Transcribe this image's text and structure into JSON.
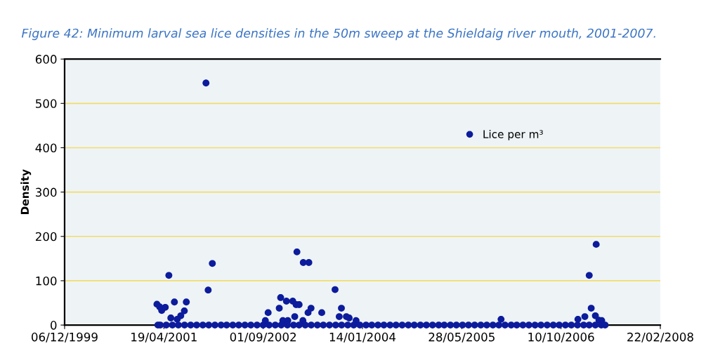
{
  "chart_data": {
    "type": "scatter",
    "title": "Figure 42: Minimum larval sea lice densities in the 50m sweep at the Shieldaig river mouth, 2001-2007.",
    "ylabel": "Density",
    "xlim": [
      "1999-12-06",
      "2008-02-22"
    ],
    "xticks": [
      {
        "value": "1999-12-06",
        "label": "06/12/1999"
      },
      {
        "value": "2001-04-19",
        "label": "19/04/2001"
      },
      {
        "value": "2002-09-01",
        "label": "01/09/2002"
      },
      {
        "value": "2004-01-14",
        "label": "14/01/2004"
      },
      {
        "value": "2005-05-28",
        "label": "28/05/2005"
      },
      {
        "value": "2006-10-10",
        "label": "10/10/2006"
      },
      {
        "value": "2008-02-22",
        "label": "22/02/2008"
      }
    ],
    "ylim": [
      0,
      600
    ],
    "yticks": [
      0,
      100,
      200,
      300,
      400,
      500,
      600
    ],
    "grid": "y",
    "legend": "top right",
    "marker": "circle",
    "series": [
      {
        "name": "Lice per m³",
        "color": "#0c1c9c",
        "x": [
          "2001-11-17",
          "2001-12-19",
          "2001-05-14",
          "2001-11-28",
          "2001-03-15",
          "2001-03-29",
          "2001-04-08",
          "2001-04-26",
          "2001-06-11",
          "2001-08-10",
          "2001-07-31",
          "2001-07-13",
          "2001-06-25",
          "2001-05-24",
          "2003-02-18",
          "2003-03-22",
          "2003-04-19",
          "2003-08-29",
          "2002-11-28",
          "2002-12-27",
          "2003-01-28",
          "2003-02-14",
          "2003-03-01",
          "2002-11-21",
          "2003-04-30",
          "2003-04-15",
          "2002-09-26",
          "2003-06-23",
          "2003-09-30",
          "2003-02-07",
          "2003-09-19",
          "2003-10-25",
          "2003-11-08",
          "2002-12-09",
          "2003-01-03",
          "2003-03-20",
          "2002-09-12",
          "2003-12-13",
          "2007-04-05",
          "2007-03-01",
          "2007-03-11",
          "2007-02-07",
          "2007-04-01",
          "2007-01-03",
          "2007-04-19",
          "2005-12-12",
          "2007-05-03",
          "2001-03-20",
          "2001-04-01",
          "2001-05-01",
          "2001-06-01",
          "2001-07-01",
          "2001-08-01",
          "2001-09-01",
          "2001-10-01",
          "2001-11-01",
          "2001-12-01",
          "2002-01-01",
          "2002-02-01",
          "2002-03-01",
          "2002-04-01",
          "2002-05-01",
          "2002-06-01",
          "2002-07-01",
          "2002-08-01",
          "2002-09-01",
          "2002-10-01",
          "2002-11-01",
          "2002-12-01",
          "2003-01-01",
          "2003-02-01",
          "2003-03-01",
          "2003-04-01",
          "2003-05-01",
          "2003-06-01",
          "2003-07-01",
          "2003-08-01",
          "2003-09-01",
          "2003-10-01",
          "2003-11-01",
          "2003-12-01",
          "2004-01-01",
          "2004-02-01",
          "2004-03-01",
          "2004-04-01",
          "2004-05-01",
          "2004-06-01",
          "2004-07-01",
          "2004-08-01",
          "2004-09-01",
          "2004-10-01",
          "2004-11-01",
          "2004-12-01",
          "2005-01-01",
          "2005-02-01",
          "2005-03-01",
          "2005-04-01",
          "2005-05-01",
          "2005-06-01",
          "2005-07-01",
          "2005-08-01",
          "2005-09-01",
          "2005-10-01",
          "2005-11-01",
          "2005-12-01",
          "2006-01-01",
          "2006-02-01",
          "2006-03-01",
          "2006-04-01",
          "2006-05-01",
          "2006-06-01",
          "2006-07-01",
          "2006-08-01",
          "2006-09-01",
          "2006-10-01",
          "2006-11-01",
          "2006-12-01",
          "2007-01-01",
          "2007-02-01",
          "2007-03-01",
          "2007-04-01",
          "2007-05-01",
          "2007-05-20"
        ],
        "values": [
          546,
          139,
          112,
          79,
          47,
          41,
          33,
          40,
          52,
          52,
          32,
          21,
          13,
          16,
          165,
          141,
          141,
          80,
          62,
          54,
          54,
          46,
          46,
          38,
          38,
          28,
          28,
          28,
          38,
          19,
          19,
          19,
          16,
          10,
          10,
          10,
          10,
          10,
          182,
          112,
          38,
          19,
          21,
          13,
          11,
          13,
          10,
          0,
          0,
          0,
          0,
          0,
          0,
          0,
          0,
          0,
          0,
          0,
          0,
          0,
          0,
          0,
          0,
          0,
          0,
          0,
          0,
          0,
          0,
          0,
          0,
          0,
          0,
          0,
          0,
          0,
          0,
          0,
          0,
          0,
          0,
          0,
          0,
          0,
          0,
          0,
          0,
          0,
          0,
          0,
          0,
          0,
          0,
          0,
          0,
          0,
          0,
          0,
          0,
          0,
          0,
          0,
          0,
          0,
          0,
          0,
          0,
          0,
          0,
          0,
          0,
          0,
          0,
          0,
          0,
          0,
          0,
          0,
          0,
          0,
          0,
          0,
          0
        ]
      }
    ]
  }
}
